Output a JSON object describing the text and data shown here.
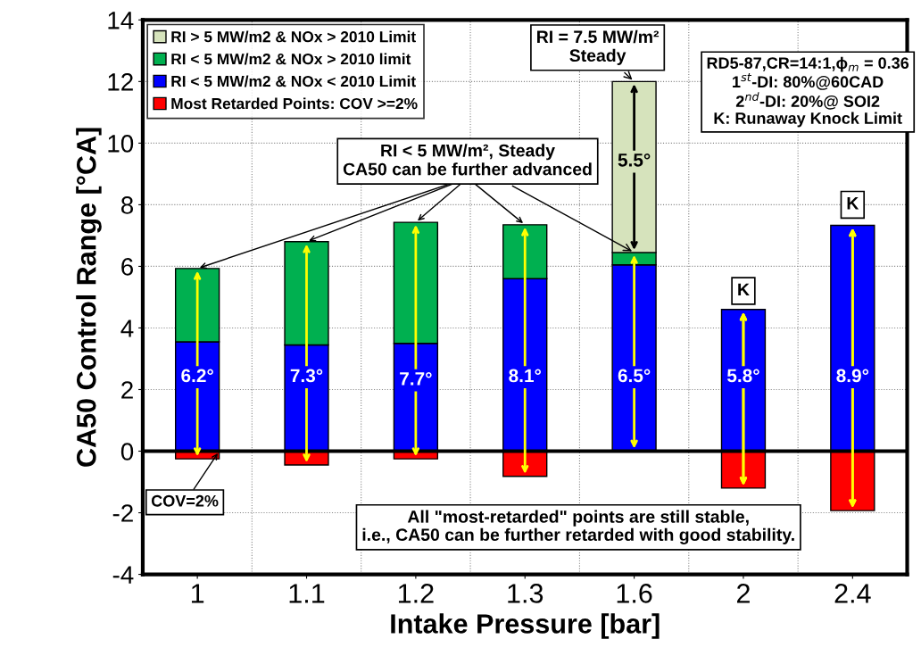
{
  "chart_data": {
    "type": "bar",
    "stacked": true,
    "xlabel": "Intake Pressure [bar]",
    "ylabel": "CA50 Control Range [°CA]",
    "categories": [
      "1",
      "1.1",
      "1.2",
      "1.3",
      "1.6",
      "2",
      "2.4"
    ],
    "series": [
      {
        "name": "Most Retarded Points: COV >=2%",
        "color": "#ff0000",
        "values": [
          -0.25,
          -0.45,
          -0.25,
          -0.82,
          null,
          -1.2,
          -1.93
        ]
      },
      {
        "name": "RI < 5 MW/m2 & NOx < 2010 Limit",
        "color": "#0000ff",
        "values": [
          3.55,
          3.45,
          3.5,
          5.6,
          6.05,
          4.6,
          7.33
        ]
      },
      {
        "name": "RI < 5 MW/m2 & NOx > 2010 limit",
        "color": "#00b050",
        "values": [
          2.38,
          3.35,
          3.93,
          1.75,
          0.4,
          null,
          null
        ]
      },
      {
        "name": "RI > 5 MW/m2 & NOx > 2010 Limit",
        "color": "#d6e3bc",
        "values": [
          null,
          null,
          null,
          null,
          5.55,
          null,
          null
        ]
      }
    ],
    "ylim": [
      -4,
      14
    ],
    "yticks": [
      -4,
      -2,
      0,
      2,
      4,
      6,
      8,
      10,
      12,
      14
    ],
    "grid": true,
    "legend": "top left",
    "ref_lines": [
      {
        "axis": "y",
        "value": 0,
        "color": "#000000"
      }
    ],
    "annotations": [
      {
        "text": "6.2°",
        "x": "1",
        "y": 2.4
      },
      {
        "text": "7.3°",
        "x": "1.1",
        "y": 2.4
      },
      {
        "text": "7.7°",
        "x": "1.2",
        "y": 2.3
      },
      {
        "text": "8.1°",
        "x": "1.3",
        "y": 2.4
      },
      {
        "text": "6.5°",
        "x": "1.6",
        "y": 2.4
      },
      {
        "text": "5.8°",
        "x": "2",
        "y": 2.4
      },
      {
        "text": "8.9°",
        "x": "2.4",
        "y": 2.4
      },
      {
        "text": "5.5°",
        "x": "1.6",
        "y": 9.4
      },
      {
        "text": "K",
        "x": "2",
        "y": 5.2
      },
      {
        "text": "K",
        "x": "2.4",
        "y": 8.0
      },
      "COV=2%",
      {
        "text": "RI = 7.5 MW/m²\nSteady",
        "x": "1.6",
        "y": 12
      },
      {
        "text": "RI < 5 MW/m², Steady\nCA50 can be further advanced",
        "x": "1.6",
        "y": 6.45
      },
      "RD5-87,CR=14:1,ϕ$_{m}$ = 0.36\n1$^{st}$-DI: 80%@60CAD\n2$^{nd}$-DI: 20%@ SOI2\nK: Runaway Knock Limit",
      "All \"most-retarded\" points are still stable,\ni.e., CA50 can be further retarded with good stability."
    ]
  }
}
